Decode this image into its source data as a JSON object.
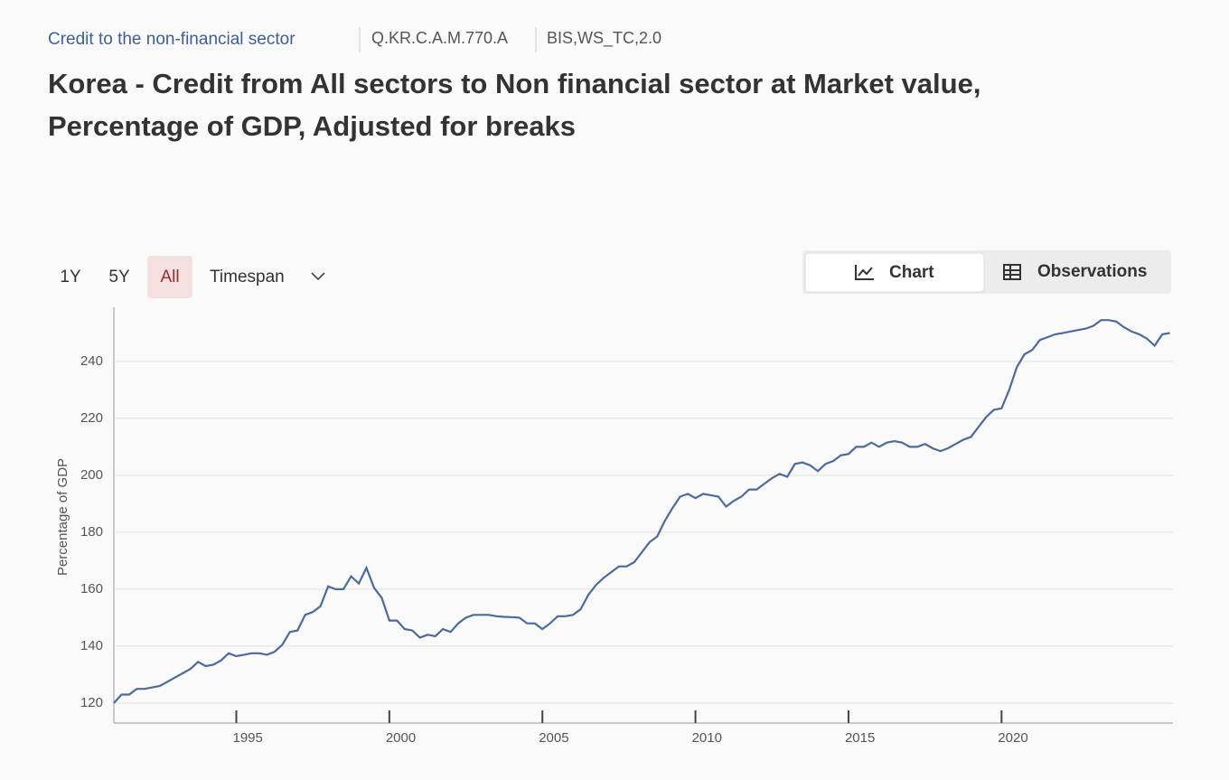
{
  "header": {
    "breadcrumb": "Credit to the non-financial sector",
    "code": "Q.KR.C.A.M.770.A",
    "dataflow": "BIS,WS_TC,2.0",
    "title_line1": "Korea - Credit from All sectors to Non financial sector at Market value,",
    "title_line2": "Percentage of GDP, Adjusted for breaks"
  },
  "controls": {
    "ranges": [
      "1Y",
      "5Y",
      "All"
    ],
    "selected": "All",
    "timespan": "Timespan",
    "views": [
      "Chart",
      "Observations"
    ],
    "selected_view": "Chart"
  },
  "chart_data": {
    "type": "line",
    "ylabel": "Percentage of GDP",
    "color": "#4a6aa0",
    "grid": true,
    "xlim": [
      1991,
      2025.6
    ],
    "xticks": [
      1995,
      2000,
      2005,
      2010,
      2015,
      2020
    ],
    "ylim": [
      113,
      259
    ],
    "yticks": [
      120,
      140,
      160,
      180,
      200,
      220,
      240
    ],
    "x": [
      1991,
      1991.25,
      1991.5,
      1991.75,
      1992,
      1992.25,
      1992.5,
      1992.75,
      1993,
      1993.25,
      1993.5,
      1993.75,
      1994,
      1994.25,
      1994.5,
      1994.75,
      1995,
      1995.25,
      1995.5,
      1995.75,
      1996,
      1996.25,
      1996.5,
      1996.75,
      1997,
      1997.25,
      1997.5,
      1997.75,
      1998,
      1998.25,
      1998.5,
      1998.75,
      1999,
      1999.25,
      1999.5,
      1999.75,
      2000,
      2000.25,
      2000.5,
      2000.75,
      2001,
      2001.25,
      2001.5,
      2001.75,
      2002,
      2002.25,
      2002.5,
      2002.75,
      2003,
      2003.25,
      2003.5,
      2003.75,
      2004,
      2004.25,
      2004.5,
      2004.75,
      2005,
      2005.25,
      2005.5,
      2005.75,
      2006,
      2006.25,
      2006.5,
      2006.75,
      2007,
      2007.25,
      2007.5,
      2007.75,
      2008,
      2008.25,
      2008.5,
      2008.75,
      2009,
      2009.25,
      2009.5,
      2009.75,
      2010,
      2010.25,
      2010.5,
      2010.75,
      2011,
      2011.25,
      2011.5,
      2011.75,
      2012,
      2012.25,
      2012.5,
      2012.75,
      2013,
      2013.25,
      2013.5,
      2013.75,
      2014,
      2014.25,
      2014.5,
      2014.75,
      2015,
      2015.25,
      2015.5,
      2015.75,
      2016,
      2016.25,
      2016.5,
      2016.75,
      2017,
      2017.25,
      2017.5,
      2017.75,
      2018,
      2018.25,
      2018.5,
      2018.75,
      2019,
      2019.25,
      2019.5,
      2019.75,
      2020,
      2020.25,
      2020.5,
      2020.75,
      2021,
      2021.25,
      2021.5,
      2021.75,
      2022,
      2022.25,
      2022.5,
      2022.75,
      2023,
      2023.25,
      2023.5,
      2023.75,
      2024,
      2024.25,
      2024.5,
      2024.75,
      2025,
      2025.25,
      2025.5
    ],
    "values": [
      120,
      123,
      123,
      125,
      125,
      125.5,
      126,
      127.5,
      129,
      130.5,
      132,
      134.5,
      133,
      133.5,
      135,
      137.5,
      136.5,
      137,
      137.5,
      137.5,
      137,
      138,
      140.5,
      145,
      145.5,
      151,
      152,
      154,
      161,
      160,
      160,
      164.5,
      162,
      167.5,
      160.5,
      157,
      149,
      149,
      146,
      145.5,
      143,
      144,
      143.5,
      146,
      145,
      148,
      150,
      151,
      151,
      151,
      150.5,
      150.3,
      150.2,
      150,
      148,
      148,
      146,
      148,
      150.5,
      150.5,
      151,
      153,
      158,
      161.5,
      164,
      166,
      168,
      168,
      169.5,
      173,
      176.5,
      178.5,
      184,
      188.5,
      192.5,
      193.5,
      192,
      193.5,
      193,
      192.5,
      189,
      191,
      192.5,
      195,
      195,
      197,
      199,
      200.5,
      199.5,
      204,
      204.5,
      203.5,
      201.5,
      204,
      205,
      207,
      207.5,
      210,
      210,
      211.5,
      210,
      211.5,
      212,
      211.5,
      210,
      210,
      211,
      209.5,
      208.5,
      209.5,
      211,
      212.5,
      213.5,
      217,
      220.5,
      223,
      223.5,
      230,
      238,
      242.5,
      244,
      247.5,
      248.5,
      249.5,
      250,
      250.5,
      251,
      251.5,
      252.5,
      254.5,
      254.5,
      254,
      252,
      250.5,
      249.5,
      248,
      245.5,
      249.5,
      250
    ]
  }
}
